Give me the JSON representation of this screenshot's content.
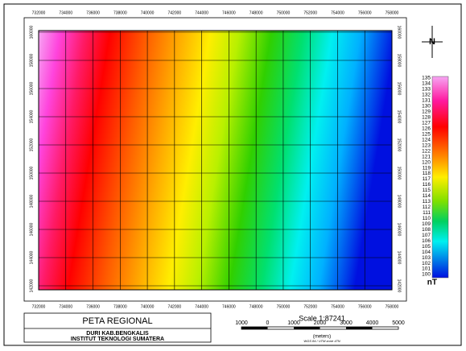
{
  "map": {
    "x_ticks": [
      {
        "value": 732000,
        "label": "732000"
      },
      {
        "value": 734000,
        "label": "734000"
      },
      {
        "value": 736000,
        "label": "736000"
      },
      {
        "value": 738000,
        "label": "738000"
      },
      {
        "value": 740000,
        "label": "740000"
      },
      {
        "value": 742000,
        "label": "742000"
      },
      {
        "value": 744000,
        "label": "744000"
      },
      {
        "value": 746000,
        "label": "746000"
      },
      {
        "value": 748000,
        "label": "748000"
      },
      {
        "value": 750000,
        "label": "750000"
      },
      {
        "value": 752000,
        "label": "752000"
      },
      {
        "value": 754000,
        "label": "754000"
      },
      {
        "value": 756000,
        "label": "756000"
      },
      {
        "value": 758000,
        "label": "758000"
      }
    ],
    "xlim": [
      732000,
      758000
    ],
    "y_ticks": [
      {
        "value": 142000,
        "label": "142000"
      },
      {
        "value": 144000,
        "label": "144000"
      },
      {
        "value": 146000,
        "label": "146000"
      },
      {
        "value": 148000,
        "label": "148000"
      },
      {
        "value": 150000,
        "label": "150000"
      },
      {
        "value": 152000,
        "label": "152000"
      },
      {
        "value": 154000,
        "label": "154000"
      },
      {
        "value": 156000,
        "label": "156000"
      },
      {
        "value": 158000,
        "label": "158000"
      },
      {
        "value": 160000,
        "label": "160000"
      }
    ],
    "ylim": [
      142000,
      160000
    ],
    "colorbar_labels": [
      "135",
      "134",
      "133",
      "132",
      "131",
      "130",
      "129",
      "128",
      "127",
      "126",
      "125",
      "124",
      "123",
      "122",
      "121",
      "120",
      "119",
      "118",
      "117",
      "116",
      "115",
      "114",
      "113",
      "112",
      "111",
      "110",
      "109",
      "108",
      "107",
      "106",
      "105",
      "104",
      "103",
      "102",
      "101",
      "100"
    ],
    "colorbar_unit": "nT",
    "north_label": "N"
  },
  "title_block": {
    "title": "PETA REGIONAL",
    "line1": "DURI KAB.BENGKALIS",
    "line2": "INSTITUT TEKNOLOGI SUMATERA"
  },
  "scale": {
    "text": "Scale 1:87241",
    "bar_labels": [
      "1000",
      "0",
      "1000",
      "2000",
      "3000",
      "4000",
      "5000"
    ],
    "unit": "(meters)",
    "projection": "WGS 84 / UTM zone 47N"
  }
}
